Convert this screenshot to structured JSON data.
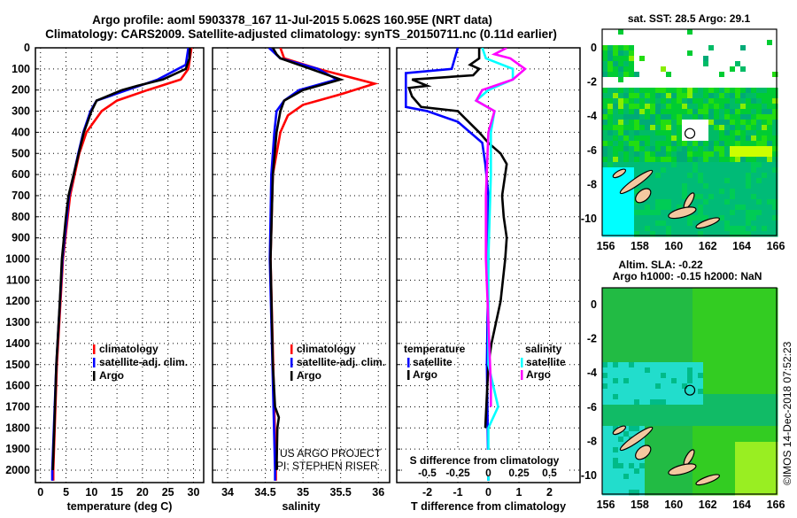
{
  "title_line1": "Argo profile: aoml 5903378_167 11-Jul-2015 5.062S 160.95E (NRT data)",
  "title_line2": "Climatology: CARS2009. Satellite-adjusted climatology: synTS_20150711.nc (0.11d earlier)",
  "credit": "©IMOS 14-Dec-2018 07:52:23",
  "project_line1": "US ARGO PROJECT",
  "project_line2": "PI: STEPHEN RISER",
  "colors": {
    "climatology": "#ff0000",
    "satellite": "#0000ff",
    "argo": "#000000",
    "sal_satellite": "#00ffff",
    "sal_argo": "#ff00ff"
  },
  "chart_data": [
    {
      "type": "line",
      "xlabel": "temperature (deg C)",
      "ylabel": "depth",
      "xlim": [
        -1,
        32
      ],
      "ylim": [
        2050,
        0
      ],
      "xticks": [
        0,
        5,
        10,
        15,
        20,
        25,
        30
      ],
      "yticks": [
        0,
        100,
        200,
        300,
        400,
        500,
        600,
        700,
        800,
        900,
        1000,
        1100,
        1200,
        1300,
        1400,
        1500,
        1600,
        1700,
        1800,
        1900,
        2000
      ],
      "legend": [
        "climatology",
        "satellite-adj. clim.",
        "Argo"
      ],
      "series": [
        {
          "name": "climatology",
          "color": "#ff0000",
          "depth": [
            0,
            100,
            150,
            200,
            250,
            300,
            400,
            500,
            700,
            1000,
            1500,
            2000,
            2050
          ],
          "values": [
            29.6,
            29.0,
            27.5,
            21,
            15,
            12,
            9,
            7.6,
            5.8,
            4.4,
            3.2,
            2.5,
            2.5
          ]
        },
        {
          "name": "satellite-adj. clim.",
          "color": "#0000ff",
          "depth": [
            0,
            80,
            150,
            200,
            250,
            300,
            400,
            500,
            700,
            1000,
            1500,
            2000,
            2050
          ],
          "values": [
            29.0,
            28.5,
            23,
            17,
            11,
            9.8,
            8.4,
            7.4,
            5.6,
            4.3,
            3.1,
            2.3,
            2.3
          ]
        },
        {
          "name": "Argo",
          "color": "#000000",
          "depth": [
            0,
            50,
            100,
            150,
            180,
            200,
            250,
            300,
            400,
            500,
            600,
            700,
            800,
            1000,
            1200,
            1500,
            1800,
            2000
          ],
          "values": [
            29.3,
            29.2,
            28.5,
            24,
            19,
            16,
            11,
            10,
            8.5,
            7.5,
            6.5,
            5.5,
            5,
            4.2,
            3.8,
            3.1,
            2.7,
            2.4
          ]
        }
      ]
    },
    {
      "type": "line",
      "xlabel": "salinity",
      "xlim": [
        33.8,
        36.15
      ],
      "ylim": [
        2050,
        0
      ],
      "xticks": [
        34,
        34.5,
        35,
        35.5,
        36
      ],
      "legend": [
        "climatology",
        "satellite-adj. clim.",
        "Argo"
      ],
      "series": [
        {
          "name": "climatology",
          "color": "#ff0000",
          "depth": [
            0,
            50,
            100,
            170,
            220,
            270,
            320,
            400,
            600,
            1000,
            2000,
            2050
          ],
          "values": [
            34.7,
            34.75,
            35.2,
            35.95,
            35.5,
            35.0,
            34.8,
            34.7,
            34.6,
            34.57,
            34.64,
            34.64
          ]
        },
        {
          "name": "satellite-adj. clim.",
          "color": "#0000ff",
          "depth": [
            0,
            50,
            100,
            150,
            200,
            250,
            300,
            400,
            600,
            1000,
            2000,
            2050
          ],
          "values": [
            34.55,
            34.7,
            35.2,
            35.45,
            34.95,
            34.75,
            34.65,
            34.62,
            34.58,
            34.56,
            34.63,
            34.63
          ]
        },
        {
          "name": "Argo",
          "color": "#000000",
          "depth": [
            0,
            30,
            50,
            100,
            150,
            200,
            250,
            300,
            400,
            600,
            1000,
            1500,
            1700,
            1750,
            1800,
            2000
          ],
          "values": [
            34.6,
            34.65,
            34.7,
            35.1,
            35.5,
            35.0,
            34.75,
            34.7,
            34.65,
            34.6,
            34.57,
            34.6,
            34.63,
            34.68,
            34.66,
            34.65
          ]
        }
      ]
    },
    {
      "type": "line",
      "xlabel": "T difference from climatology",
      "xlabel_top": "S difference from climatology",
      "xlim": [
        -3,
        3
      ],
      "xlim_salinity": [
        -0.75,
        0.75
      ],
      "ylim": [
        2050,
        0
      ],
      "xticks": [
        "-2",
        "-1",
        "0",
        "1",
        "2"
      ],
      "xticks_salinity": [
        "-0.5",
        "-0.25",
        "0",
        "0.25",
        "0.5"
      ],
      "legend": {
        "temperature_heading": "temperature",
        "salinity_heading": "salinity",
        "items": [
          "satellite",
          "Argo",
          "satellite",
          "Argo"
        ]
      },
      "series": [
        {
          "name": "temperature satellite",
          "color": "#0000ff",
          "depth": [
            0,
            100,
            120,
            280,
            300,
            350,
            450,
            550,
            700,
            1000,
            1500,
            2050
          ],
          "values": [
            -1,
            -1.2,
            -2.7,
            -2.7,
            -2,
            -1,
            -0.2,
            -0.1,
            0,
            0,
            -0.05,
            0
          ]
        },
        {
          "name": "temperature Argo",
          "color": "#000000",
          "depth": [
            0,
            50,
            80,
            100,
            130,
            150,
            180,
            190,
            230,
            280,
            300,
            400,
            450,
            500,
            550,
            600,
            700,
            800,
            900,
            1000,
            1200,
            1400,
            1500,
            1800
          ],
          "values": [
            -0.3,
            -0.3,
            -0.6,
            -0.3,
            -0.5,
            -2.5,
            -2,
            -2.6,
            -2.5,
            -2.2,
            -1,
            -0.3,
            0,
            0.4,
            0.6,
            0.55,
            0.45,
            0.5,
            0.6,
            0.55,
            0.4,
            0.1,
            0,
            -0.1
          ]
        },
        {
          "name": "salinity satellite",
          "color": "#00ffff",
          "depth": [
            0,
            50,
            100,
            150,
            200,
            250,
            300,
            400,
            600,
            1000,
            1500,
            1700,
            1800,
            2050
          ],
          "values": [
            -0.05,
            -0.02,
            0.2,
            0.2,
            0,
            -0.1,
            0.05,
            0.02,
            0.02,
            0,
            0,
            0.08,
            0,
            0
          ]
        },
        {
          "name": "salinity Argo",
          "color": "#ff00ff",
          "depth": [
            0,
            30,
            50,
            100,
            150,
            200,
            250,
            300,
            400,
            700,
            1000,
            1600,
            1700
          ],
          "values": [
            0.15,
            0.05,
            0.18,
            0.3,
            0.2,
            -0.05,
            -0.1,
            0.05,
            0,
            -0.02,
            -0.02,
            0.02,
            0.02
          ]
        }
      ]
    },
    {
      "type": "heatmap",
      "title": "sat. SST: 28.5 Argo: 29.1",
      "xlim": [
        155.9,
        166.1
      ],
      "ylim": [
        -11,
        1
      ],
      "xticks": [
        156,
        158,
        160,
        162,
        164,
        166
      ],
      "yticks": [
        0,
        -2,
        -4,
        -6,
        -8,
        -10
      ],
      "argo_position": [
        160.95,
        -5.062
      ]
    },
    {
      "type": "heatmap",
      "title": "Altim. SLA: -0.22",
      "subtitle": "Argo h1000: -0.15 h2000: NaN",
      "xlim": [
        155.9,
        166.1
      ],
      "ylim": [
        -11,
        1
      ],
      "xticks": [
        156,
        158,
        160,
        162,
        164,
        166
      ],
      "yticks": [
        0,
        -2,
        -4,
        -6,
        -8,
        -10
      ],
      "argo_position": [
        160.95,
        -5.062
      ]
    }
  ]
}
